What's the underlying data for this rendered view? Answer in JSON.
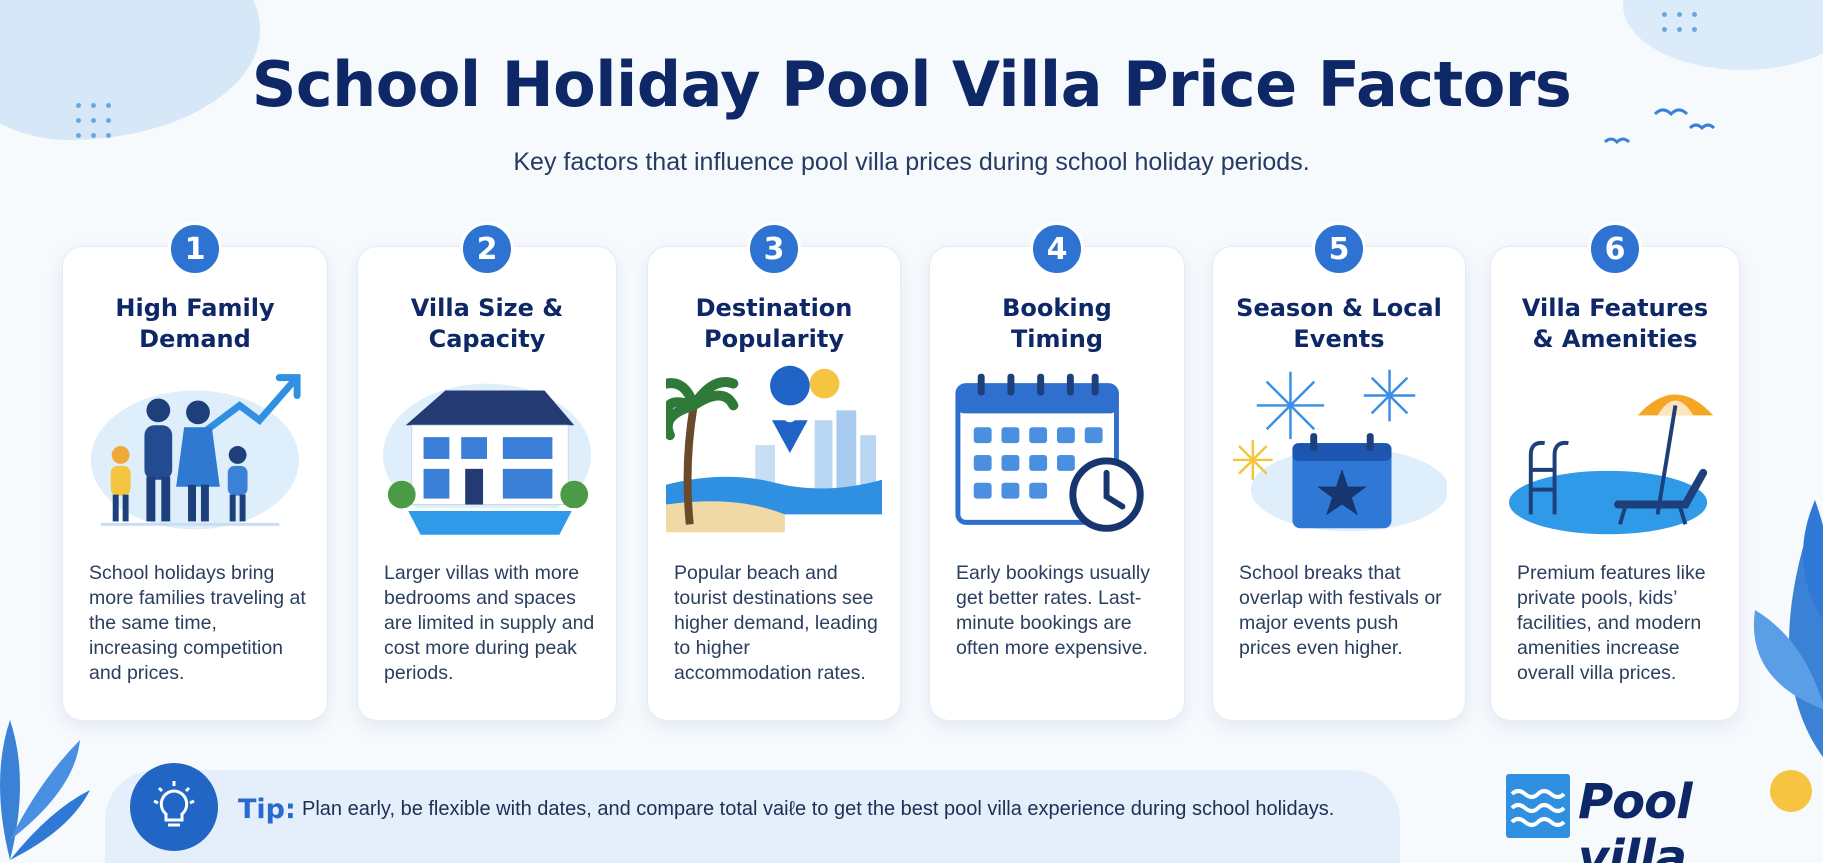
{
  "header": {
    "title": "School Holiday Pool Villa Price Factors",
    "subtitle": "Key factors that influence pool villa prices during school holiday periods."
  },
  "cards": [
    {
      "number": "1",
      "title_line1": "High Family",
      "title_line2": "Demand",
      "description": "School holidays bring more families traveling at the same time, increasing competition and prices.",
      "icon": "family-with-rising-arrow-icon"
    },
    {
      "number": "2",
      "title_line1": "Villa Size &",
      "title_line2": "Capacity",
      "description": "Larger villas with more bedrooms and spaces are limited in supply and cost more during peak periods.",
      "icon": "villa-with-pool-icon"
    },
    {
      "number": "3",
      "title_line1": "Destination",
      "title_line2": "Popularity",
      "description": "Popular beach and tourist destinations see higher demand, leading to higher accommodation rates.",
      "icon": "beach-location-pin-icon"
    },
    {
      "number": "4",
      "title_line1": "Booking",
      "title_line2": "Timing",
      "description": "Early bookings usually get better rates. Last-minute bookings are often more expensive.",
      "icon": "calendar-clock-icon"
    },
    {
      "number": "5",
      "title_line1": "Season & Local",
      "title_line2": "Events",
      "description": "School breaks that overlap with festivals or major events push prices even higher.",
      "icon": "fireworks-calendar-icon"
    },
    {
      "number": "6",
      "title_line1": "Villa Features",
      "title_line2": "& Amenities",
      "description": "Premium features like private pools, kids’ facilities, and modern amenities increase overall villa prices.",
      "icon": "pool-umbrella-lounger-icon"
    }
  ],
  "tip": {
    "label": "Tip:",
    "text": "Plan early, be flexible with dates, and compare total vaiℓe to get the best pool villa experience during school holidays."
  },
  "logo": {
    "text": "Pool villa"
  },
  "colors": {
    "title": "#0e2766",
    "accent": "#2e73d2",
    "tip_label": "#2a6ad0",
    "background": "#f7fafd"
  }
}
